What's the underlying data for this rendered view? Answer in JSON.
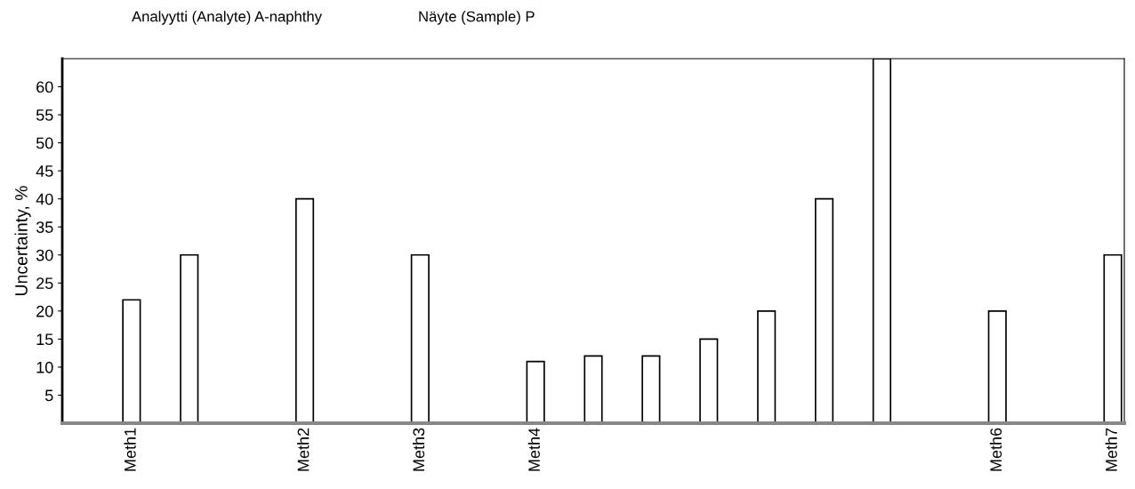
{
  "chart_data": {
    "type": "bar",
    "title": "Analyytti (Analyte) A-naphthy",
    "subtitle": "Näyte (Sample) P",
    "ylabel": "Uncertainty, %",
    "categories": [
      "Meth1",
      null,
      null,
      "Meth2",
      null,
      "Meth3",
      null,
      "Meth4",
      null,
      null,
      null,
      null,
      null,
      null,
      null,
      "Meth6",
      null,
      "Meth7"
    ],
    "values": [
      22,
      30,
      null,
      40,
      null,
      30,
      null,
      11,
      12,
      12,
      15,
      20,
      40,
      65,
      null,
      20,
      null,
      30
    ],
    "color": "#ffffff",
    "ylim": [
      0,
      65
    ],
    "yticks": [
      5,
      10,
      15,
      20,
      25,
      30,
      35,
      40,
      45,
      50,
      55,
      60
    ],
    "grid": false
  }
}
